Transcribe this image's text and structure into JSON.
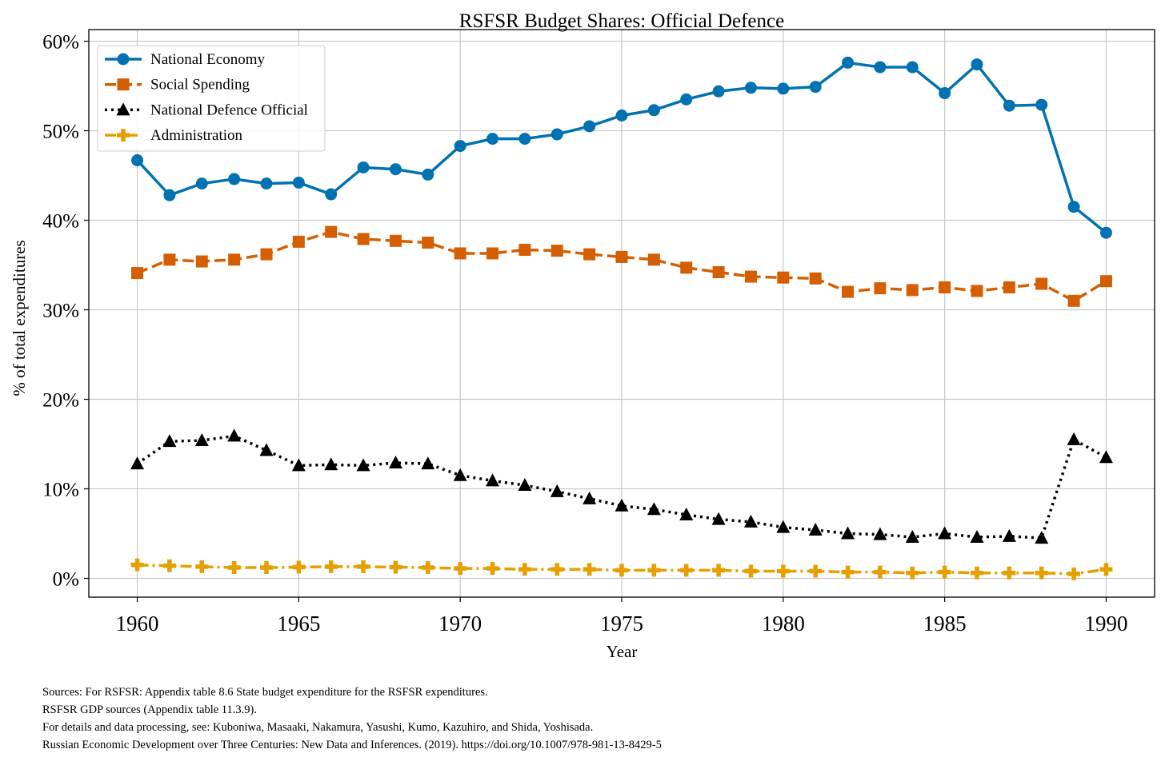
{
  "chart_data": {
    "type": "line",
    "title": "RSFSR Budget Shares: Official Defence",
    "xlabel": "Year",
    "ylabel": "% of total expenditures",
    "xlim": [
      1958.5,
      1991.5
    ],
    "ylim": [
      -2.1,
      61.3
    ],
    "xticks": [
      1960,
      1965,
      1970,
      1975,
      1980,
      1985,
      1990
    ],
    "yticks": [
      0,
      10,
      20,
      30,
      40,
      50,
      60
    ],
    "ytick_labels": [
      "0%",
      "10%",
      "20%",
      "30%",
      "40%",
      "50%",
      "60%"
    ],
    "grid": true,
    "legend_position": "top-left",
    "x": [
      1960,
      1961,
      1962,
      1963,
      1964,
      1965,
      1966,
      1967,
      1968,
      1969,
      1970,
      1971,
      1972,
      1973,
      1974,
      1975,
      1976,
      1977,
      1978,
      1979,
      1980,
      1981,
      1982,
      1983,
      1984,
      1985,
      1986,
      1987,
      1988,
      1989,
      1990
    ],
    "series": [
      {
        "name": "National Economy",
        "color": "#0072b2",
        "marker": "circle",
        "dash": "solid",
        "values": [
          46.7,
          42.8,
          44.1,
          44.6,
          44.1,
          44.2,
          42.9,
          45.9,
          45.7,
          45.1,
          48.3,
          49.1,
          49.1,
          49.6,
          50.5,
          51.7,
          52.3,
          53.5,
          54.4,
          54.8,
          54.7,
          54.9,
          57.6,
          57.1,
          57.1,
          54.2,
          57.4,
          52.8,
          52.9,
          41.5,
          38.6
        ]
      },
      {
        "name": "Social Spending",
        "color": "#d55e00",
        "marker": "square",
        "dash": "dashed",
        "values": [
          34.1,
          35.6,
          35.4,
          35.6,
          36.2,
          37.6,
          38.7,
          37.9,
          37.7,
          37.5,
          36.3,
          36.3,
          36.7,
          36.6,
          36.2,
          35.9,
          35.6,
          34.7,
          34.2,
          33.7,
          33.6,
          33.5,
          32.0,
          32.4,
          32.2,
          32.5,
          32.1,
          32.5,
          32.9,
          31.0,
          33.2
        ]
      },
      {
        "name": "National Defence Official",
        "color": "#000000",
        "marker": "triangle",
        "dash": "dotted",
        "values": [
          12.8,
          15.3,
          15.4,
          15.9,
          14.3,
          12.6,
          12.7,
          12.6,
          12.9,
          12.8,
          11.5,
          10.9,
          10.4,
          9.7,
          8.9,
          8.1,
          7.7,
          7.1,
          6.6,
          6.3,
          5.7,
          5.4,
          5.0,
          4.9,
          4.6,
          5.0,
          4.6,
          4.7,
          4.5,
          15.5,
          13.5
        ]
      },
      {
        "name": "Administration",
        "color": "#e69f00",
        "marker": "plus",
        "dash": "dashdot",
        "values": [
          1.5,
          1.4,
          1.3,
          1.2,
          1.2,
          1.25,
          1.3,
          1.3,
          1.25,
          1.2,
          1.1,
          1.1,
          1.0,
          1.0,
          1.0,
          0.9,
          0.9,
          0.9,
          0.9,
          0.8,
          0.8,
          0.8,
          0.7,
          0.7,
          0.6,
          0.7,
          0.6,
          0.6,
          0.6,
          0.5,
          1.0
        ]
      }
    ]
  },
  "footer": {
    "lines": [
      "Sources: For RSFSR: Appendix table 8.6 State budget expenditure for the RSFSR expenditures.",
      "RSFSR GDP sources (Appendix table 11.3.9).",
      "For details and data processing, see: Kuboniwa, Masaaki, Nakamura, Yasushi, Kumo, Kazuhiro, and Shida, Yoshisada.",
      "Russian Economic Development over Three Centuries: New Data and Inferences. (2019). https://doi.org/10.1007/978-981-13-8429-5"
    ]
  }
}
